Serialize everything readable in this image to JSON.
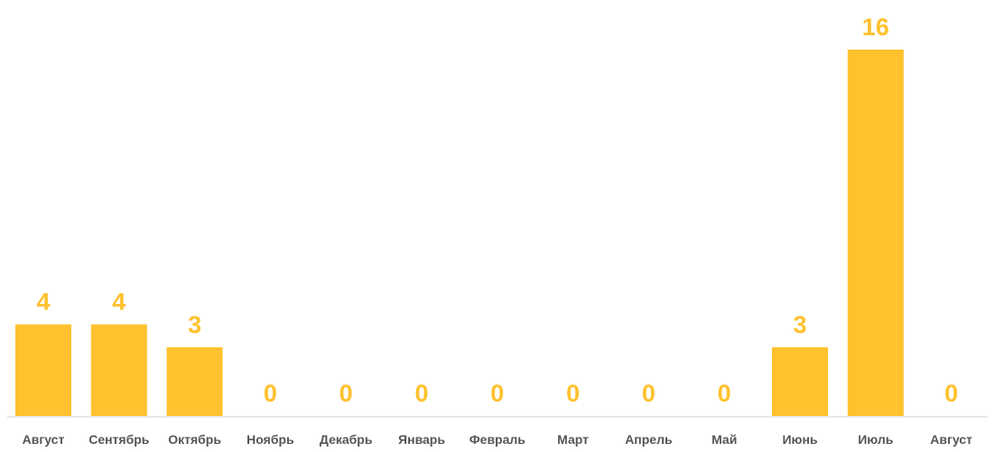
{
  "chart_data": {
    "type": "bar",
    "categories": [
      "Август",
      "Сентябрь",
      "Октябрь",
      "Ноябрь",
      "Декабрь",
      "Январь",
      "Февраль",
      "Март",
      "Апрель",
      "Май",
      "Июнь",
      "Июль",
      "Август"
    ],
    "values": [
      4,
      4,
      3,
      0,
      0,
      0,
      0,
      0,
      0,
      0,
      3,
      16,
      0
    ],
    "title": "",
    "xlabel": "",
    "ylabel": "",
    "ylim": [
      0,
      16
    ],
    "grid": false,
    "legend": "none",
    "data_labels": true,
    "bar_color": "#FFC12E",
    "label_color": "#FFC12E",
    "tick_color": "#555555",
    "baseline_color": "#E8E8E8"
  }
}
